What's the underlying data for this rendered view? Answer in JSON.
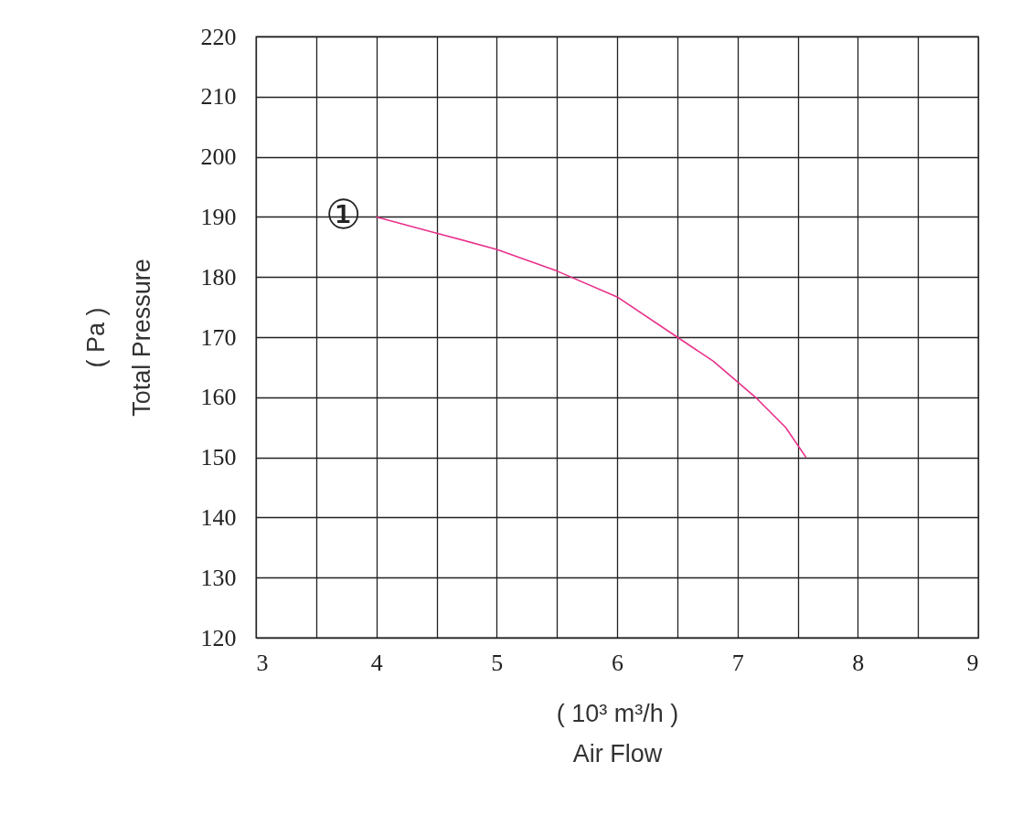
{
  "chart_data": {
    "type": "line",
    "xlabel": "( 10³ m³/h )\nAir Flow",
    "ylabel": "( Pa )\nTotal Pressure",
    "series": [
      {
        "color": "#e8308a",
        "x": [
          4,
          4.5,
          5,
          5.5,
          6,
          6.5,
          6.8,
          7.15,
          7.4,
          7.57
        ],
        "values": [
          190,
          187.3,
          184.6,
          181,
          176.7,
          170,
          166,
          160,
          155,
          150
        ]
      }
    ],
    "xlim": [
      3,
      9
    ],
    "xticks": [
      3,
      {
        "value": 3.5,
        "label": null
      },
      4,
      {
        "value": 4.5,
        "label": null
      },
      5,
      {
        "value": 5.5,
        "label": null
      },
      6,
      {
        "value": 6.5,
        "label": null
      },
      7,
      {
        "value": 7.5,
        "label": null
      },
      8,
      {
        "value": 8.5,
        "label": null
      },
      9
    ],
    "ylim": [
      120,
      220
    ],
    "yticks": [
      120,
      130,
      140,
      150,
      160,
      170,
      180,
      190,
      200,
      210,
      220
    ],
    "grid": true,
    "marker": "none",
    "line_style": "solid",
    "annotations": [
      "①"
    ]
  }
}
